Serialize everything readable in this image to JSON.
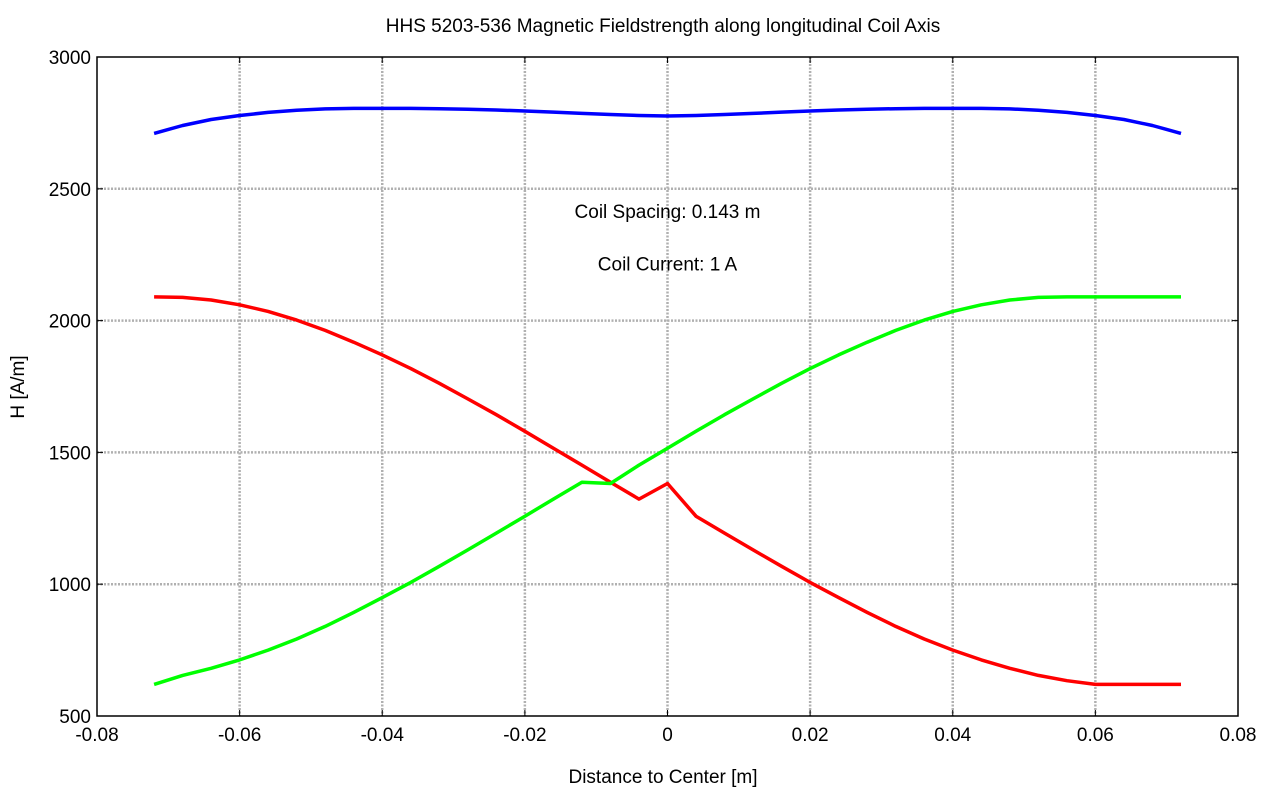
{
  "chart_data": {
    "type": "line",
    "title": "HHS 5203-536 Magnetic Fieldstrength along longitudinal Coil Axis",
    "xlabel": "Distance to Center [m]",
    "ylabel": "H [A/m]",
    "xlim": [
      -0.08,
      0.08
    ],
    "ylim": [
      500,
      3000
    ],
    "xticks": [
      -0.08,
      -0.06,
      -0.04,
      -0.02,
      0,
      0.02,
      0.04,
      0.06,
      0.08
    ],
    "xtick_labels": [
      "-0.08",
      "-0.06",
      "-0.04",
      "-0.02",
      "0",
      "0.02",
      "0.04",
      "0.06",
      "0.08"
    ],
    "yticks": [
      500,
      1000,
      1500,
      2000,
      2500,
      3000
    ],
    "ytick_labels": [
      "500",
      "1000",
      "1500",
      "2000",
      "2500",
      "3000"
    ],
    "grid": true,
    "x": [
      -0.072,
      -0.068,
      -0.064,
      -0.06,
      -0.056,
      -0.052,
      -0.048,
      -0.044,
      -0.04,
      -0.036,
      -0.032,
      -0.028,
      -0.024,
      -0.02,
      -0.016,
      -0.012,
      -0.008,
      -0.004,
      0,
      0.004,
      0.008,
      0.012,
      0.016,
      0.02,
      0.024,
      0.028,
      0.032,
      0.036,
      0.04,
      0.044,
      0.048,
      0.052,
      0.056,
      0.06,
      0.064,
      0.068,
      0.072
    ],
    "series": [
      {
        "color": "#0000ff",
        "values": [
          2710,
          2740,
          2763,
          2778,
          2790,
          2798,
          2803,
          2805,
          2805,
          2805,
          2804,
          2802,
          2799,
          2795,
          2791,
          2786,
          2782,
          2778,
          2776,
          2778,
          2782,
          2786,
          2791,
          2795,
          2799,
          2802,
          2804,
          2805,
          2805,
          2805,
          2803,
          2798,
          2790,
          2778,
          2763,
          2740,
          2710
        ]
      },
      {
        "color": "#ff0000",
        "values": [
          2090,
          2088,
          2078,
          2060,
          2035,
          2002,
          1963,
          1918,
          1870,
          1818,
          1762,
          1703,
          1643,
          1580,
          1516,
          1452,
          1387,
          1323,
          1382,
          1258,
          1194,
          1130,
          1068,
          1007,
          949,
          893,
          840,
          792,
          750,
          713,
          681,
          654,
          634,
          620,
          620,
          620,
          620
        ]
      },
      {
        "color": "#00ff00",
        "values": [
          620,
          654,
          681,
          713,
          750,
          792,
          840,
          893,
          949,
          1007,
          1068,
          1130,
          1194,
          1258,
          1323,
          1387,
          1382,
          1452,
          1516,
          1580,
          1643,
          1703,
          1762,
          1818,
          1870,
          1918,
          1963,
          2002,
          2035,
          2060,
          2078,
          2088,
          2090,
          2090,
          2090,
          2090,
          2090
        ]
      }
    ],
    "annotations": [
      {
        "text": "Coil Spacing: 0.143 m",
        "x": 0,
        "y": 2390
      },
      {
        "text": "Coil Current: 1 A",
        "x": 0,
        "y": 2190
      }
    ]
  }
}
